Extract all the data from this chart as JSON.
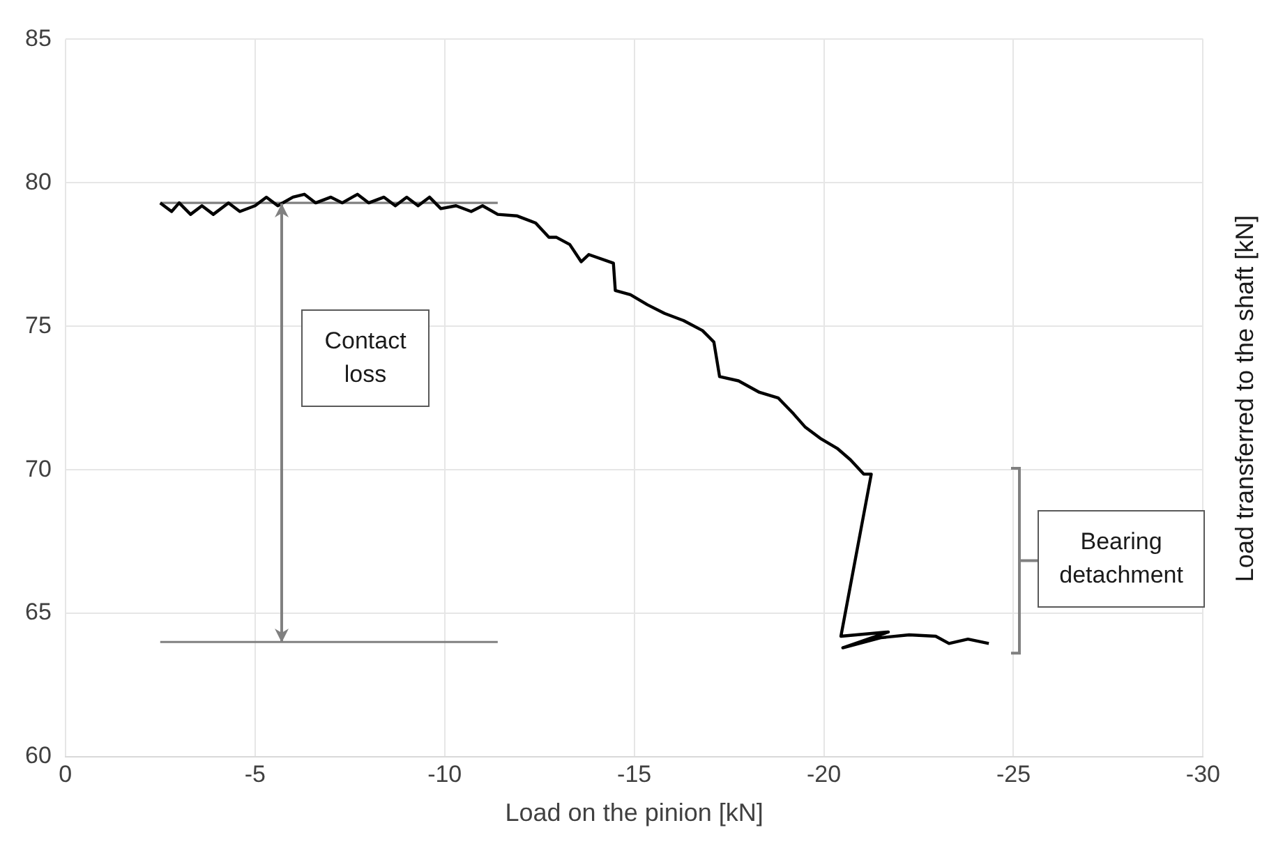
{
  "chart_data": {
    "type": "line",
    "xlabel": "Load on the pinion [kN]",
    "ylabel": "Load transferred to the shaft [kN]",
    "xlim": [
      0,
      -30
    ],
    "xticks": [
      0,
      -5,
      -10,
      -15,
      -20,
      -25,
      -30
    ],
    "ylim": [
      60,
      85
    ],
    "yticks": [
      60,
      65,
      70,
      75,
      80,
      85
    ],
    "grid": true,
    "legend": false,
    "marker": "none",
    "line_style": "solid",
    "series": [
      {
        "color": "#000000",
        "x": [
          -2.5,
          -2.8,
          -3.0,
          -3.3,
          -3.6,
          -3.9,
          -4.3,
          -4.6,
          -5.0,
          -5.3,
          -5.6,
          -6.0,
          -6.3,
          -6.6,
          -7.0,
          -7.3,
          -7.7,
          -8.0,
          -8.4,
          -8.7,
          -9.0,
          -9.3,
          -9.6,
          -9.9,
          -10.3,
          -10.7,
          -11.0,
          -11.4,
          -11.9,
          -12.4,
          -12.75,
          -12.95,
          -13.3,
          -13.6,
          -13.8,
          -14.45,
          -14.5,
          -14.9,
          -15.35,
          -15.8,
          -16.3,
          -16.8,
          -17.1,
          -17.25,
          -17.75,
          -18.3,
          -18.8,
          -19.2,
          -19.5,
          -19.9,
          -20.35,
          -20.7,
          -21.05,
          -21.25,
          -20.45,
          -21.7,
          -20.5,
          -21.5,
          -22.25,
          -22.95,
          -23.3,
          -23.8,
          -24.35
        ],
        "values": [
          79.3,
          79.0,
          79.3,
          78.9,
          79.2,
          78.9,
          79.3,
          79.0,
          79.2,
          79.5,
          79.2,
          79.5,
          79.6,
          79.3,
          79.5,
          79.3,
          79.6,
          79.3,
          79.5,
          79.2,
          79.5,
          79.2,
          79.5,
          79.1,
          79.2,
          79.0,
          79.2,
          78.9,
          78.85,
          78.6,
          78.1,
          78.1,
          77.85,
          77.25,
          77.5,
          77.2,
          76.25,
          76.1,
          75.75,
          75.45,
          75.2,
          74.85,
          74.45,
          73.25,
          73.1,
          72.7,
          72.5,
          71.95,
          71.5,
          71.1,
          70.75,
          70.35,
          69.85,
          69.85,
          64.2,
          64.35,
          63.8,
          64.15,
          64.25,
          64.2,
          63.95,
          64.1,
          63.95
        ]
      },
      {
        "color": "#808080",
        "x": [
          -2.5,
          -11.4
        ],
        "values": [
          79.3,
          79.3
        ]
      },
      {
        "color": "#808080",
        "x": [
          -2.5,
          -11.4
        ],
        "values": [
          64.0,
          64.0
        ]
      }
    ],
    "annotations": [
      "Contact loss",
      "Bearing detachment"
    ]
  }
}
